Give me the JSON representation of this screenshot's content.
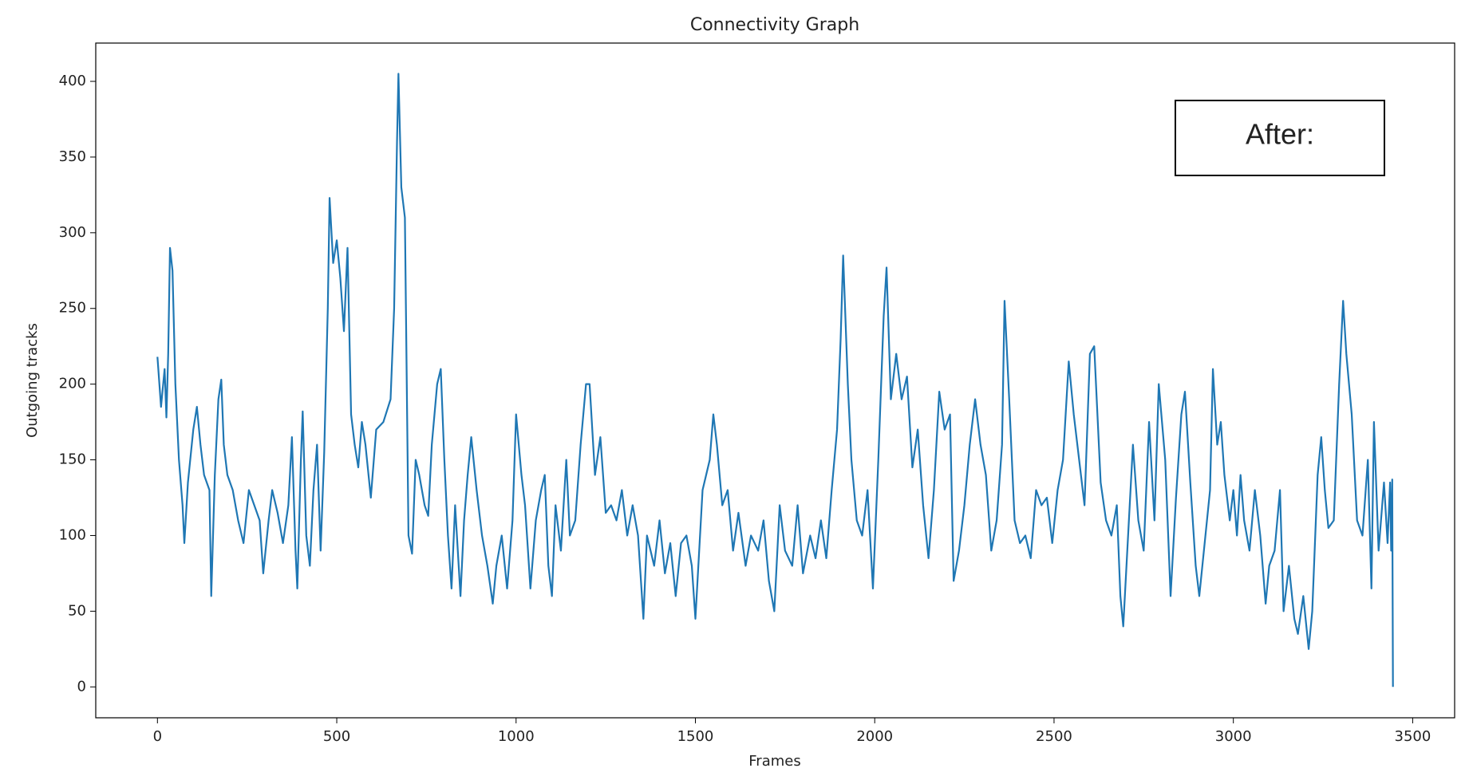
{
  "chart_data": {
    "type": "line",
    "title": "Connectivity Graph",
    "x_label": "Frames",
    "y_label": "Outgoing tracks",
    "annotation": "After:",
    "xlim": [
      -172,
      3617
    ],
    "ylim": [
      -20.4,
      425.3
    ],
    "xticks": [
      0,
      500,
      1000,
      1500,
      2000,
      2500,
      3000,
      3500
    ],
    "yticks": [
      0,
      50,
      100,
      150,
      200,
      250,
      300,
      350,
      400
    ],
    "series": [
      {
        "name": "Outgoing tracks",
        "color": "#1f77b4",
        "x": [
          0,
          10,
          20,
          25,
          30,
          35,
          42,
          50,
          60,
          70,
          75,
          85,
          100,
          110,
          120,
          130,
          145,
          150,
          160,
          170,
          178,
          185,
          195,
          210,
          225,
          240,
          255,
          270,
          285,
          295,
          310,
          320,
          335,
          350,
          365,
          375,
          385,
          390,
          400,
          405,
          415,
          425,
          435,
          445,
          455,
          465,
          475,
          480,
          490,
          500,
          510,
          520,
          530,
          540,
          550,
          560,
          570,
          580,
          595,
          610,
          630,
          650,
          660,
          668,
          672,
          680,
          690,
          700,
          710,
          720,
          730,
          745,
          755,
          765,
          780,
          790,
          800,
          810,
          820,
          830,
          845,
          855,
          865,
          875,
          890,
          905,
          920,
          935,
          945,
          960,
          975,
          990,
          1000,
          1015,
          1025,
          1040,
          1055,
          1070,
          1080,
          1090,
          1100,
          1110,
          1125,
          1140,
          1150,
          1165,
          1180,
          1195,
          1205,
          1220,
          1235,
          1250,
          1265,
          1280,
          1295,
          1310,
          1325,
          1340,
          1355,
          1365,
          1385,
          1400,
          1415,
          1430,
          1445,
          1460,
          1475,
          1490,
          1500,
          1520,
          1540,
          1550,
          1560,
          1575,
          1590,
          1605,
          1620,
          1640,
          1655,
          1675,
          1690,
          1705,
          1720,
          1735,
          1750,
          1770,
          1785,
          1800,
          1820,
          1835,
          1850,
          1865,
          1880,
          1895,
          1905,
          1912,
          1925,
          1935,
          1950,
          1965,
          1980,
          1995,
          2010,
          2025,
          2033,
          2045,
          2060,
          2075,
          2090,
          2105,
          2120,
          2135,
          2150,
          2165,
          2180,
          2195,
          2210,
          2220,
          2235,
          2250,
          2265,
          2280,
          2295,
          2310,
          2325,
          2340,
          2355,
          2362,
          2375,
          2390,
          2405,
          2420,
          2435,
          2450,
          2465,
          2480,
          2495,
          2510,
          2525,
          2541,
          2555,
          2570,
          2585,
          2600,
          2612,
          2630,
          2645,
          2660,
          2675,
          2685,
          2693,
          2720,
          2735,
          2750,
          2765,
          2780,
          2792,
          2810,
          2825,
          2840,
          2855,
          2865,
          2880,
          2895,
          2905,
          2920,
          2935,
          2943,
          2955,
          2965,
          2975,
          2990,
          3000,
          3010,
          3020,
          3030,
          3045,
          3060,
          3075,
          3090,
          3100,
          3115,
          3130,
          3140,
          3155,
          3170,
          3180,
          3195,
          3210,
          3220,
          3235,
          3245,
          3255,
          3265,
          3280,
          3295,
          3306,
          3315,
          3330,
          3345,
          3360,
          3375,
          3385,
          3392,
          3405,
          3420,
          3430,
          3437,
          3440,
          3443,
          3445
        ],
        "values": [
          218,
          185,
          210,
          178,
          220,
          290,
          275,
          200,
          150,
          120,
          95,
          135,
          170,
          185,
          160,
          140,
          130,
          60,
          140,
          190,
          203,
          160,
          140,
          130,
          110,
          95,
          130,
          120,
          110,
          75,
          110,
          130,
          115,
          95,
          120,
          165,
          90,
          65,
          150,
          182,
          100,
          80,
          130,
          160,
          90,
          155,
          250,
          323,
          280,
          295,
          270,
          235,
          290,
          180,
          160,
          145,
          175,
          160,
          125,
          170,
          175,
          190,
          250,
          360,
          405,
          330,
          310,
          100,
          88,
          150,
          140,
          120,
          113,
          160,
          200,
          210,
          150,
          100,
          65,
          120,
          60,
          110,
          140,
          165,
          130,
          100,
          80,
          55,
          80,
          100,
          65,
          110,
          180,
          140,
          120,
          65,
          110,
          130,
          140,
          80,
          60,
          120,
          90,
          150,
          100,
          110,
          160,
          200,
          200,
          140,
          165,
          115,
          120,
          110,
          130,
          100,
          120,
          100,
          45,
          100,
          80,
          110,
          75,
          95,
          60,
          95,
          100,
          80,
          45,
          130,
          150,
          180,
          160,
          120,
          130,
          90,
          115,
          80,
          100,
          90,
          110,
          70,
          50,
          120,
          90,
          80,
          120,
          75,
          100,
          85,
          110,
          85,
          130,
          170,
          230,
          285,
          200,
          150,
          110,
          100,
          130,
          65,
          150,
          245,
          277,
          190,
          220,
          190,
          205,
          145,
          170,
          120,
          85,
          130,
          195,
          170,
          180,
          70,
          90,
          120,
          160,
          190,
          160,
          140,
          90,
          110,
          160,
          255,
          190,
          110,
          95,
          100,
          85,
          130,
          120,
          125,
          95,
          130,
          150,
          215,
          180,
          150,
          120,
          220,
          225,
          135,
          110,
          100,
          120,
          60,
          40,
          160,
          110,
          90,
          175,
          110,
          200,
          150,
          60,
          125,
          180,
          195,
          135,
          80,
          60,
          95,
          130,
          210,
          160,
          175,
          140,
          110,
          130,
          100,
          140,
          110,
          90,
          130,
          100,
          55,
          80,
          90,
          130,
          50,
          80,
          45,
          35,
          60,
          25,
          50,
          140,
          165,
          130,
          105,
          110,
          200,
          255,
          220,
          180,
          110,
          100,
          150,
          65,
          175,
          90,
          135,
          95,
          135,
          90,
          137,
          0
        ]
      }
    ]
  }
}
